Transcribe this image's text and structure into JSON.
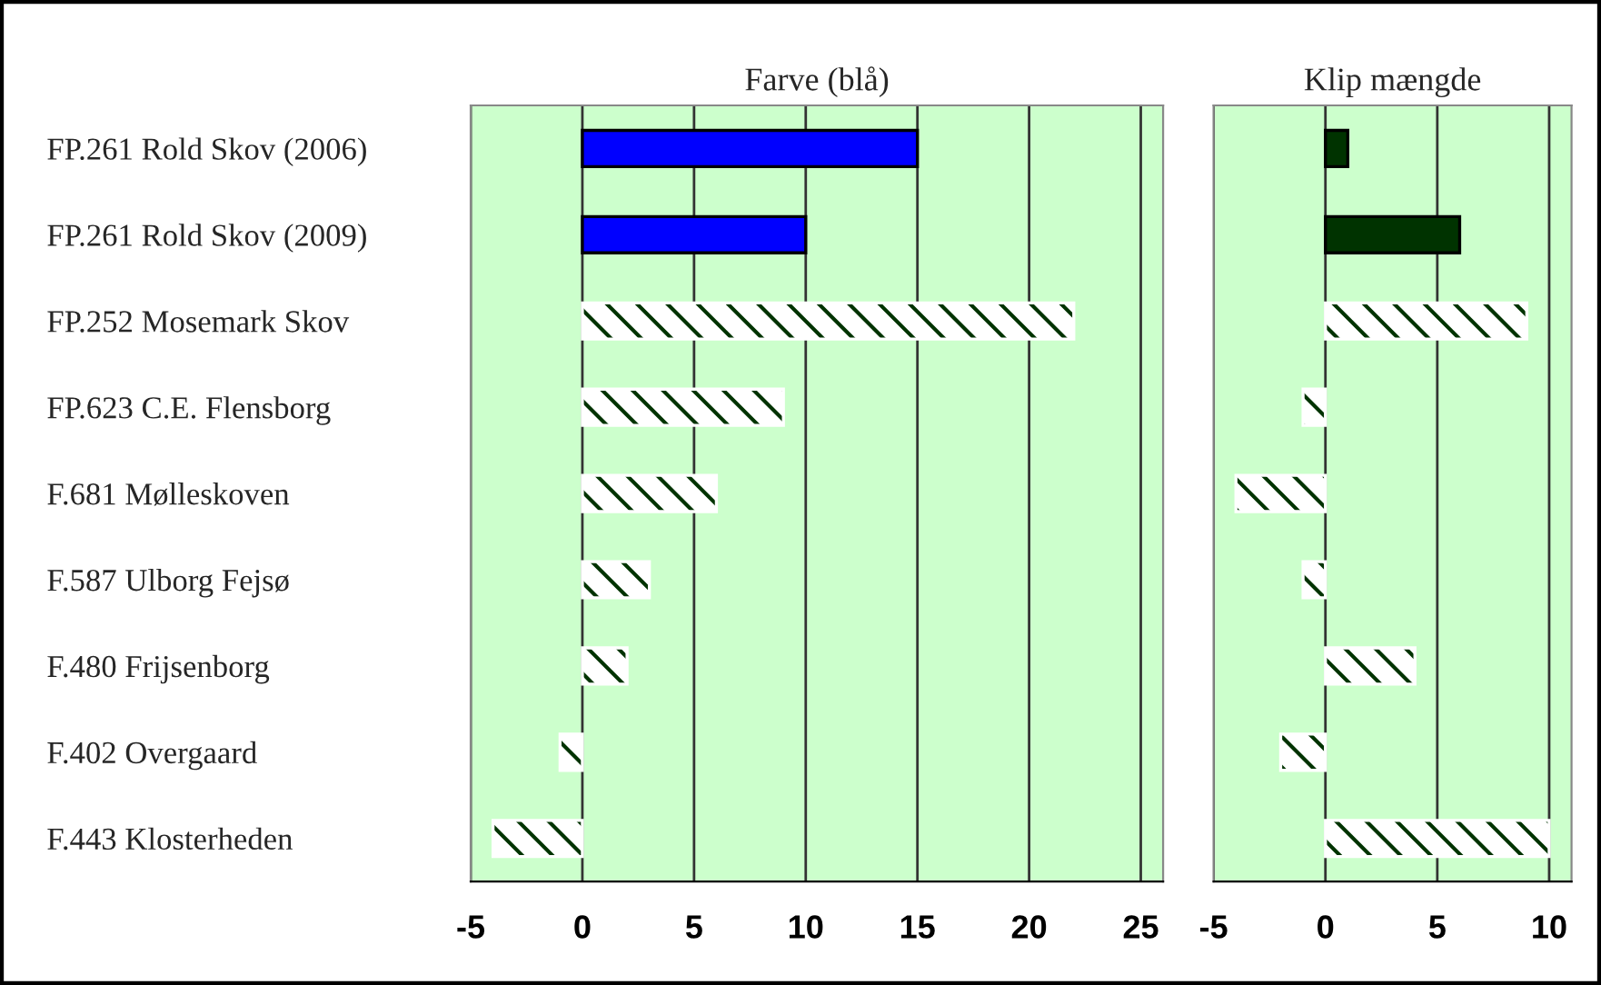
{
  "chart_data": [
    {
      "type": "bar",
      "orientation": "horizontal",
      "title": "Farve (blå)",
      "categories": [
        "FP.261 Rold Skov (2006)",
        "FP.261 Rold Skov (2009)",
        "FP.252 Mosemark Skov",
        "FP.623 C.E. Flensborg",
        "F.681 Mølleskoven",
        "F.587 Ulborg Fejsø",
        "F.480 Frijsenborg",
        "F.402 Overgaard",
        "F.443 Klosterheden"
      ],
      "values": [
        15,
        10,
        22,
        9,
        6,
        3,
        2,
        -1,
        -4
      ],
      "colors": [
        "#0000ff",
        "#0000ff",
        "#ffffff",
        "#ffffff",
        "#ffffff",
        "#ffffff",
        "#ffffff",
        "#ffffff",
        "#ffffff"
      ],
      "xlim": [
        -5,
        26
      ],
      "xticks": [
        -5,
        0,
        5,
        10,
        15,
        20,
        25
      ],
      "grid": "x"
    },
    {
      "type": "bar",
      "orientation": "horizontal",
      "title": "Klip mængde",
      "categories": [
        null,
        null,
        null,
        null,
        null,
        null,
        null,
        null,
        null
      ],
      "values": [
        1,
        6,
        9,
        -1,
        -4,
        -1,
        4,
        -2,
        10
      ],
      "colors": [
        "#003300",
        "#003300",
        "#ffffff",
        "#ffffff",
        "#ffffff",
        "#ffffff",
        "#ffffff",
        "#ffffff",
        "#ffffff"
      ],
      "xlim": [
        -5,
        11
      ],
      "xticks": [
        -5,
        0,
        5,
        10
      ],
      "grid": "x",
      "tick_labels": "x"
    }
  ]
}
